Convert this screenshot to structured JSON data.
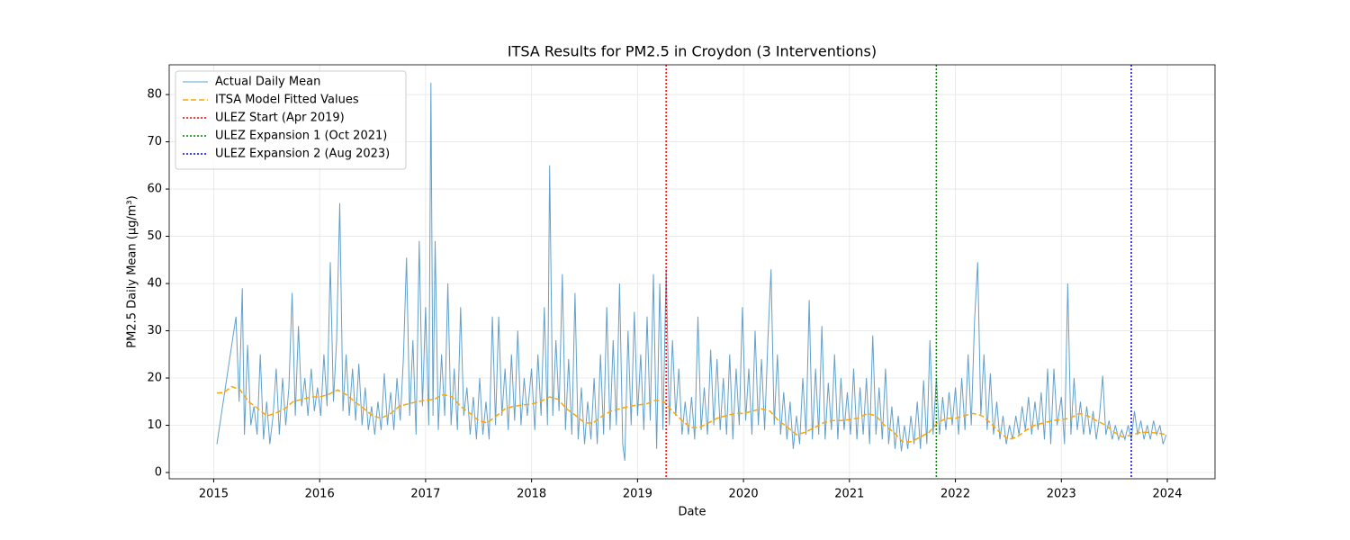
{
  "chart_data": {
    "type": "line",
    "title": "ITSA Results for PM2.5 in Croydon (3 Interventions)",
    "xlabel": "Date",
    "ylabel": "PM2.5 Daily Mean (µg/m³)",
    "xlim": [
      2014.58,
      2024.45
    ],
    "ylim": [
      -1.33,
      86.3
    ],
    "xticks": [
      2015,
      2016,
      2017,
      2018,
      2019,
      2020,
      2021,
      2022,
      2023,
      2024
    ],
    "yticks": [
      0,
      10,
      20,
      30,
      40,
      50,
      60,
      70,
      80
    ],
    "grid": true,
    "legend": "upper left",
    "series": [
      {
        "name": "Actual Daily Mean",
        "color": "#1f77b4",
        "style": "solid",
        "x": [
          2015.03,
          2015.21,
          2015.24,
          2015.27,
          2015.29,
          2015.32,
          2015.35,
          2015.38,
          2015.41,
          2015.44,
          2015.47,
          2015.5,
          2015.53,
          2015.56,
          2015.59,
          2015.62,
          2015.65,
          2015.68,
          2015.71,
          2015.74,
          2015.77,
          2015.8,
          2015.83,
          2015.86,
          2015.89,
          2015.92,
          2015.95,
          2015.98,
          2016.01,
          2016.04,
          2016.07,
          2016.1,
          2016.13,
          2016.16,
          2016.19,
          2016.22,
          2016.25,
          2016.28,
          2016.31,
          2016.34,
          2016.37,
          2016.4,
          2016.43,
          2016.46,
          2016.49,
          2016.52,
          2016.55,
          2016.58,
          2016.61,
          2016.64,
          2016.67,
          2016.7,
          2016.73,
          2016.76,
          2016.79,
          2016.82,
          2016.85,
          2016.88,
          2016.91,
          2016.94,
          2016.97,
          2017.0,
          2017.03,
          2017.05,
          2017.07,
          2017.09,
          2017.12,
          2017.15,
          2017.18,
          2017.21,
          2017.24,
          2017.27,
          2017.3,
          2017.33,
          2017.36,
          2017.39,
          2017.42,
          2017.45,
          2017.48,
          2017.51,
          2017.54,
          2017.57,
          2017.6,
          2017.63,
          2017.66,
          2017.69,
          2017.72,
          2017.75,
          2017.78,
          2017.81,
          2017.84,
          2017.87,
          2017.9,
          2017.93,
          2017.96,
          2018.0,
          2018.03,
          2018.06,
          2018.09,
          2018.12,
          2018.15,
          2018.17,
          2018.2,
          2018.23,
          2018.26,
          2018.29,
          2018.32,
          2018.35,
          2018.38,
          2018.41,
          2018.44,
          2018.47,
          2018.5,
          2018.53,
          2018.56,
          2018.59,
          2018.62,
          2018.65,
          2018.68,
          2018.71,
          2018.74,
          2018.77,
          2018.8,
          2018.83,
          2018.86,
          2018.88,
          2018.91,
          2018.94,
          2018.97,
          2019.0,
          2019.03,
          2019.06,
          2019.09,
          2019.12,
          2019.15,
          2019.18,
          2019.21,
          2019.24,
          2019.27,
          2019.3,
          2019.33,
          2019.36,
          2019.39,
          2019.42,
          2019.45,
          2019.48,
          2019.51,
          2019.54,
          2019.57,
          2019.6,
          2019.63,
          2019.66,
          2019.69,
          2019.72,
          2019.75,
          2019.78,
          2019.81,
          2019.84,
          2019.87,
          2019.9,
          2019.93,
          2019.96,
          2019.99,
          2020.02,
          2020.05,
          2020.08,
          2020.11,
          2020.14,
          2020.17,
          2020.2,
          2020.23,
          2020.26,
          2020.29,
          2020.32,
          2020.35,
          2020.38,
          2020.41,
          2020.44,
          2020.47,
          2020.5,
          2020.53,
          2020.56,
          2020.59,
          2020.62,
          2020.65,
          2020.68,
          2020.71,
          2020.74,
          2020.77,
          2020.8,
          2020.83,
          2020.86,
          2020.89,
          2020.92,
          2020.95,
          2020.98,
          2021.01,
          2021.04,
          2021.07,
          2021.1,
          2021.13,
          2021.16,
          2021.19,
          2021.22,
          2021.25,
          2021.28,
          2021.31,
          2021.34,
          2021.37,
          2021.4,
          2021.43,
          2021.46,
          2021.49,
          2021.52,
          2021.55,
          2021.58,
          2021.61,
          2021.64,
          2021.67,
          2021.7,
          2021.73,
          2021.76,
          2021.79,
          2021.82,
          2021.85,
          2021.88,
          2021.91,
          2021.94,
          2021.97,
          2022.0,
          2022.03,
          2022.06,
          2022.09,
          2022.12,
          2022.15,
          2022.18,
          2022.21,
          2022.24,
          2022.27,
          2022.3,
          2022.33,
          2022.36,
          2022.39,
          2022.42,
          2022.45,
          2022.48,
          2022.51,
          2022.54,
          2022.57,
          2022.6,
          2022.63,
          2022.66,
          2022.69,
          2022.72,
          2022.75,
          2022.78,
          2022.81,
          2022.84,
          2022.87,
          2022.9,
          2022.93,
          2022.96,
          2023.0,
          2023.03,
          2023.06,
          2023.09,
          2023.12,
          2023.15,
          2023.18,
          2023.21,
          2023.24,
          2023.27,
          2023.3,
          2023.33,
          2023.36,
          2023.39,
          2023.42,
          2023.45,
          2023.48,
          2023.51,
          2023.54,
          2023.57,
          2023.6,
          2023.63,
          2023.66,
          2023.69,
          2023.72,
          2023.75,
          2023.78,
          2023.81,
          2023.84,
          2023.87,
          2023.9,
          2023.93,
          2023.96,
          2023.99
        ],
        "values": [
          6,
          33,
          15,
          39,
          8,
          27,
          10,
          14,
          8,
          25,
          7,
          15,
          6,
          12,
          22,
          8,
          20,
          10,
          18,
          38,
          12,
          31,
          14,
          20,
          12,
          22,
          13,
          18,
          12,
          25,
          14,
          44.5,
          15,
          28,
          57,
          13,
          25,
          12,
          22,
          11,
          23,
          10,
          18,
          9,
          14,
          8,
          15,
          9,
          21,
          10,
          17,
          9,
          20,
          11,
          24,
          45.5,
          12,
          28,
          8,
          49,
          14,
          35,
          10,
          82.5,
          12,
          49,
          9,
          25,
          12,
          40,
          10,
          22,
          9,
          35,
          12,
          18,
          8,
          16,
          7,
          20,
          8,
          15,
          7,
          33,
          10,
          33,
          12,
          22,
          9,
          25,
          11,
          30,
          10,
          20,
          12,
          22,
          9,
          25,
          12,
          35,
          10,
          65,
          12,
          28,
          13,
          42,
          9,
          24,
          8,
          38,
          7,
          18,
          6,
          15,
          7,
          20,
          6,
          25,
          8,
          35,
          9,
          28,
          10,
          40,
          6,
          2.5,
          30,
          10,
          34,
          12,
          25,
          9,
          33,
          11,
          42,
          5,
          40,
          9,
          43,
          10,
          28,
          12,
          22,
          8,
          15,
          8,
          16,
          7,
          33,
          9,
          18,
          8,
          26,
          10,
          24,
          9,
          20,
          8,
          25,
          7,
          22,
          10,
          35,
          11,
          22,
          8,
          30,
          10,
          24,
          9,
          28,
          43,
          10,
          25,
          8,
          17,
          7,
          15,
          5,
          12,
          6,
          20,
          8,
          36.5,
          7,
          22,
          8,
          31,
          7,
          19,
          9,
          25,
          7,
          20,
          9,
          17,
          8,
          22,
          7,
          18,
          8,
          20,
          6,
          29,
          8,
          18,
          7,
          22,
          6,
          14,
          5,
          12,
          4.5,
          10,
          5,
          12,
          6,
          15,
          5,
          19.5,
          6,
          28,
          8,
          20,
          8,
          16,
          9,
          17,
          10,
          18,
          8,
          20,
          9,
          25,
          10,
          32,
          44.5,
          12,
          25,
          9,
          21,
          8,
          15,
          7,
          12,
          6,
          10,
          7,
          12,
          8,
          14,
          9,
          16,
          8,
          15,
          9,
          17,
          7,
          22,
          6,
          22,
          10,
          16,
          6,
          40,
          8,
          20,
          9,
          15,
          8,
          14,
          8,
          13,
          7,
          12,
          20.5,
          8,
          11,
          7,
          10,
          7,
          9,
          7,
          10,
          7,
          13,
          8,
          11,
          7,
          10,
          7,
          11,
          8,
          10,
          6,
          8
        ]
      },
      {
        "name": "ITSA Model Fitted Values",
        "color": "orange",
        "style": "dashed",
        "x": [
          2015.03,
          2015.1,
          2015.17,
          2015.25,
          2015.33,
          2015.42,
          2015.5,
          2015.58,
          2015.67,
          2015.75,
          2015.83,
          2015.92,
          2016.0,
          2016.08,
          2016.17,
          2016.25,
          2016.33,
          2016.42,
          2016.5,
          2016.58,
          2016.67,
          2016.75,
          2016.83,
          2016.92,
          2017.0,
          2017.08,
          2017.17,
          2017.25,
          2017.33,
          2017.42,
          2017.5,
          2017.58,
          2017.67,
          2017.75,
          2017.83,
          2017.92,
          2018.0,
          2018.08,
          2018.17,
          2018.25,
          2018.33,
          2018.42,
          2018.5,
          2018.58,
          2018.67,
          2018.75,
          2018.83,
          2018.92,
          2019.0,
          2019.08,
          2019.17,
          2019.25,
          2019.33,
          2019.42,
          2019.5,
          2019.58,
          2019.67,
          2019.75,
          2019.83,
          2019.92,
          2020.0,
          2020.08,
          2020.17,
          2020.25,
          2020.33,
          2020.42,
          2020.5,
          2020.58,
          2020.67,
          2020.75,
          2020.83,
          2020.92,
          2021.0,
          2021.08,
          2021.17,
          2021.25,
          2021.33,
          2021.42,
          2021.5,
          2021.58,
          2021.67,
          2021.75,
          2021.83,
          2021.92,
          2022.0,
          2022.08,
          2022.17,
          2022.25,
          2022.33,
          2022.42,
          2022.5,
          2022.58,
          2022.67,
          2022.75,
          2022.83,
          2022.92,
          2023.0,
          2023.08,
          2023.17,
          2023.25,
          2023.33,
          2023.42,
          2023.5,
          2023.58,
          2023.67,
          2023.75,
          2023.83,
          2023.92,
          2023.99
        ],
        "values": [
          16.8,
          17,
          18.2,
          17.5,
          15,
          13.5,
          12,
          12.5,
          13.5,
          15,
          15.5,
          16,
          16,
          16.5,
          17.5,
          16.5,
          15,
          13.5,
          12,
          11.5,
          12.5,
          14,
          14.5,
          15,
          15.3,
          15.5,
          16.5,
          16,
          14,
          12.5,
          11,
          10.5,
          12,
          13.5,
          14,
          14.3,
          14.5,
          15,
          16,
          15.5,
          13.5,
          12,
          10.5,
          10.5,
          12,
          13,
          13.5,
          14,
          14.3,
          14.5,
          15.3,
          15,
          13,
          11,
          9.5,
          9.5,
          10.5,
          11.5,
          12,
          12.5,
          12.5,
          13,
          13.5,
          13,
          11,
          9.5,
          8,
          8.5,
          9.5,
          10.5,
          11,
          11,
          11.2,
          11.5,
          12.5,
          12,
          10,
          8.5,
          6.5,
          6.5,
          7.5,
          8.5,
          10.5,
          11.5,
          11.5,
          12,
          12.5,
          12,
          10.5,
          8.5,
          7,
          7.5,
          9,
          10,
          10.5,
          11,
          11.2,
          11.5,
          12.5,
          12,
          11,
          10,
          8.5,
          7.5,
          8,
          8.5,
          8.5,
          8.3,
          8
        ]
      }
    ],
    "vlines": [
      {
        "name": "ULEZ Start (Apr 2019)",
        "color": "red",
        "x": 2019.27
      },
      {
        "name": "ULEZ Expansion 1 (Oct 2021)",
        "color": "green",
        "x": 2021.82
      },
      {
        "name": "ULEZ Expansion 2 (Aug 2023)",
        "color": "blue",
        "x": 2023.66
      }
    ]
  }
}
